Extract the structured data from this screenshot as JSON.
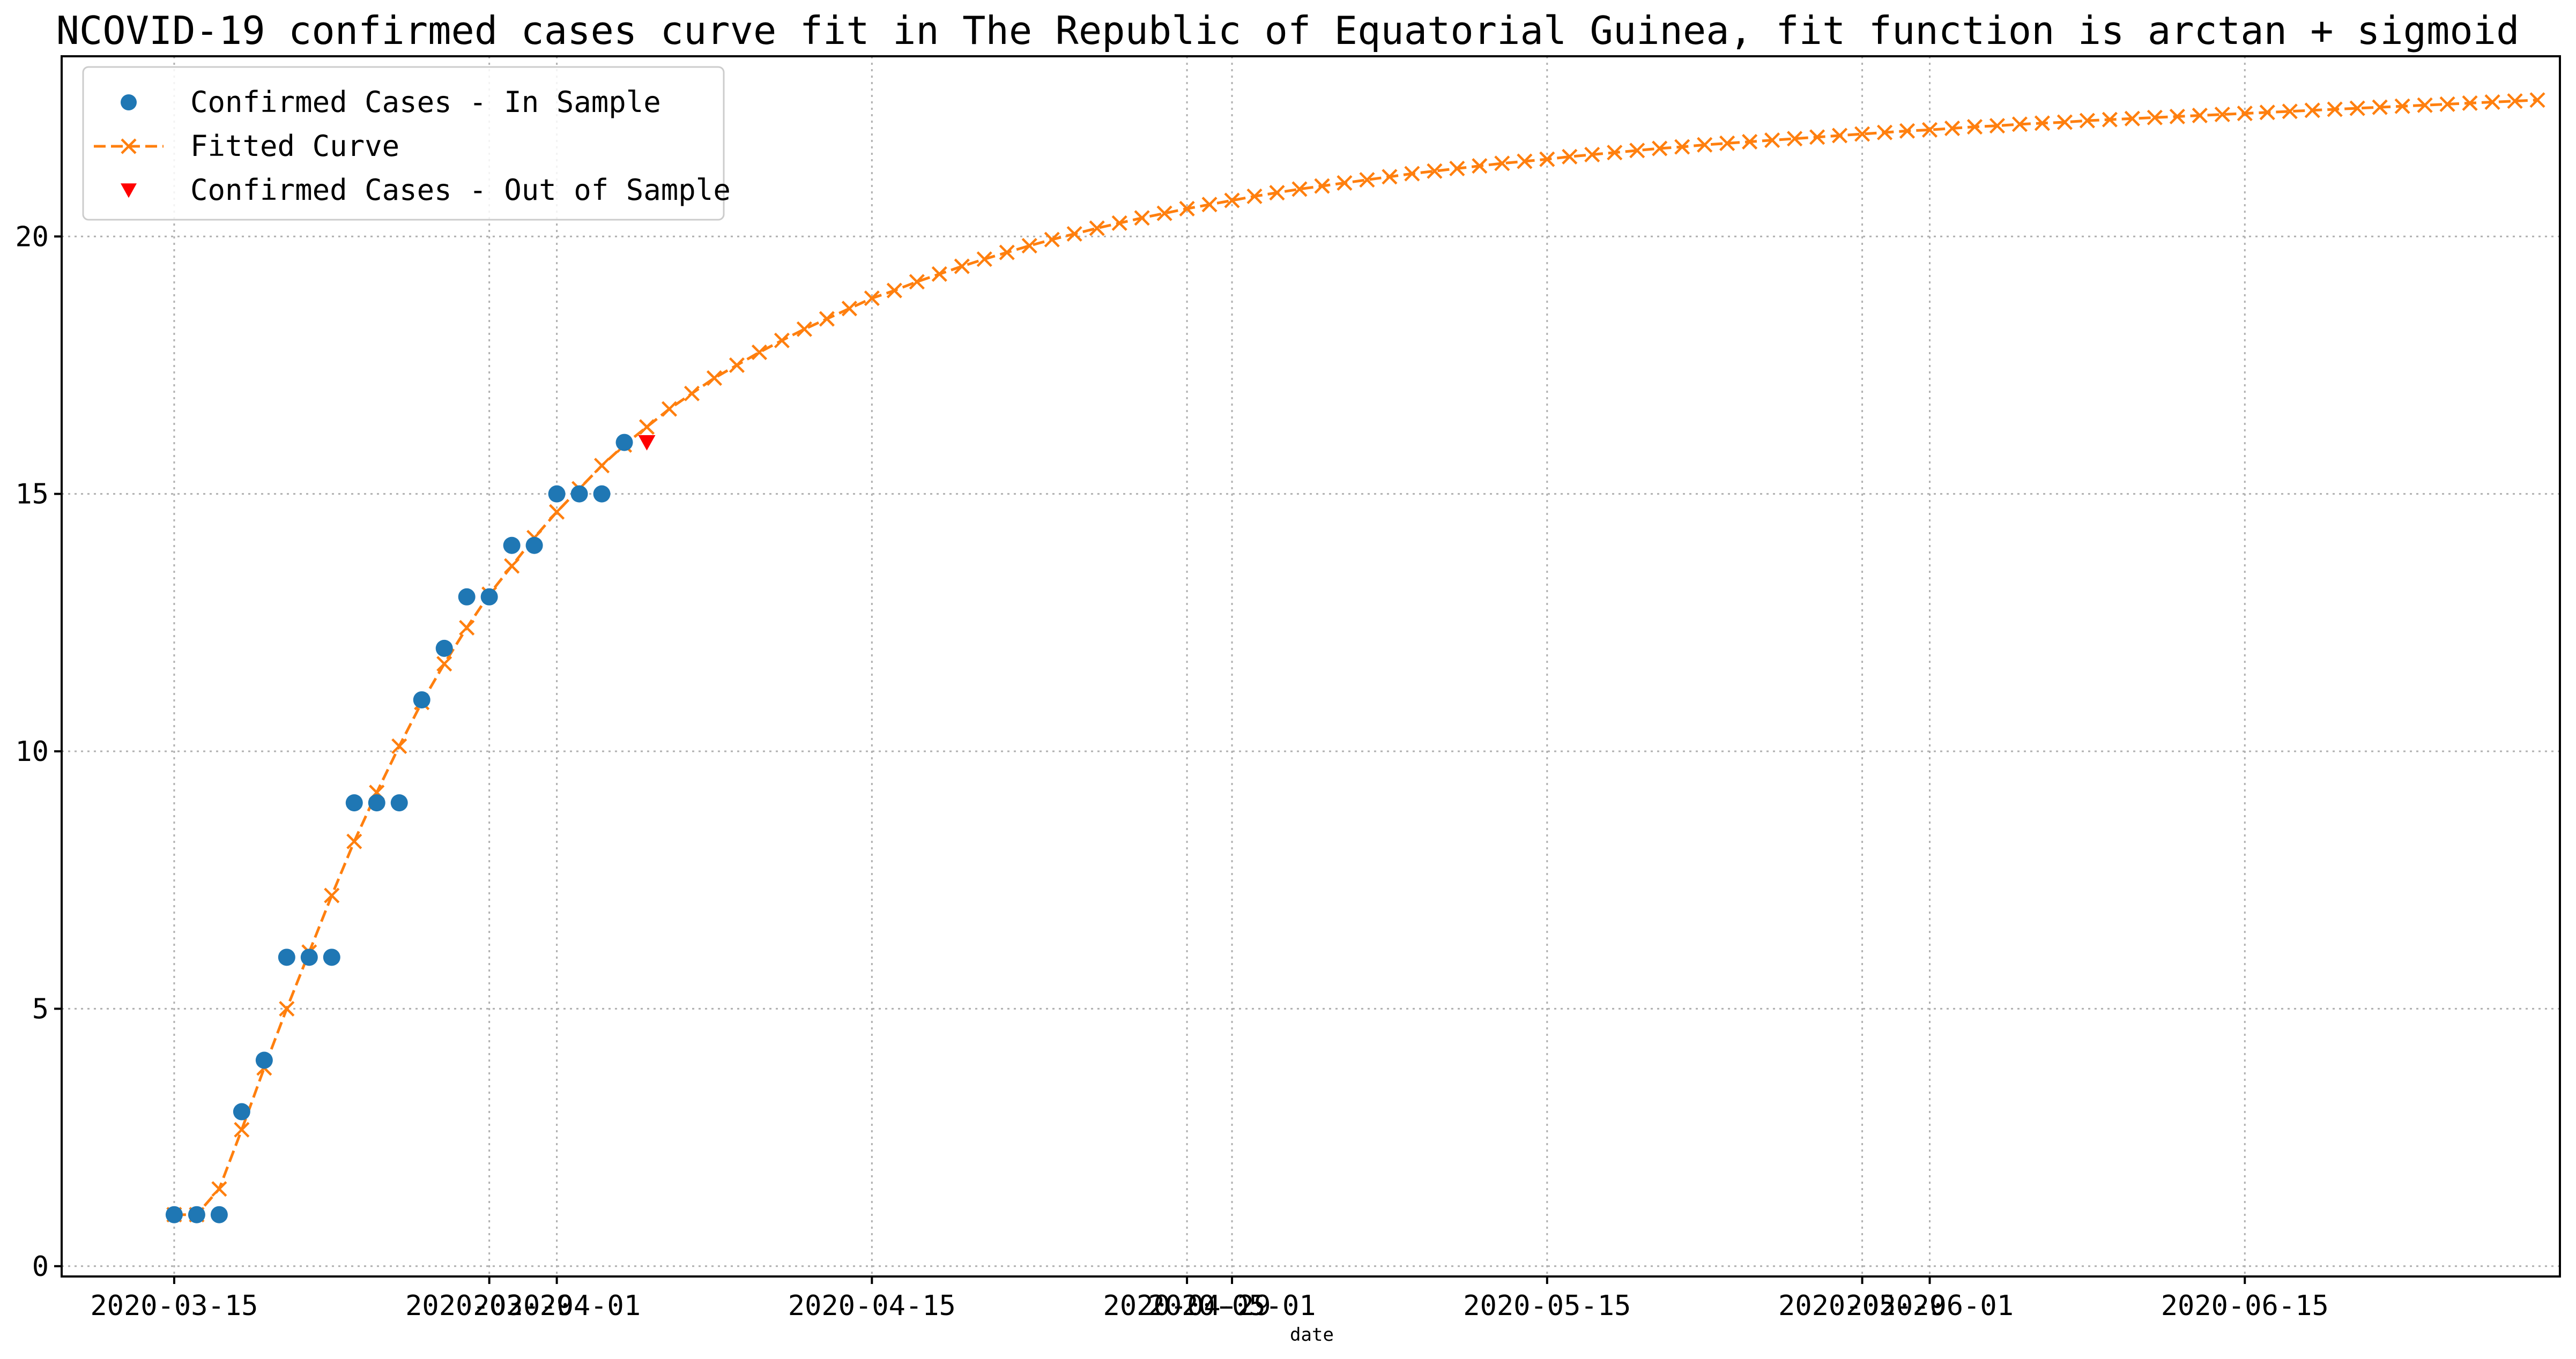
{
  "chart_data": {
    "type": "line",
    "title": "NCOVID-19 confirmed cases curve fit in The Republic of Equatorial Guinea, fit function is arctan + sigmoid",
    "xlabel": "date",
    "ylabel": "",
    "xlim": [
      "2020-03-10",
      "2020-06-29"
    ],
    "ylim": [
      -0.2,
      23.5
    ],
    "grid": true,
    "legend_position": "top-left",
    "x_ticks": [
      "2020-03-15",
      "2020-03-29",
      "2020-04-01",
      "2020-04-15",
      "2020-04-29",
      "2020-05-01",
      "2020-05-15",
      "2020-05-29",
      "2020-06-01",
      "2020-06-15"
    ],
    "y_ticks": [
      0,
      5,
      10,
      15,
      20
    ],
    "series": [
      {
        "name": "Confirmed Cases - In Sample",
        "kind": "scatter",
        "marker": "circle",
        "color": "#1f77b4",
        "start_date": "2020-03-15",
        "values": [
          1,
          1,
          1,
          3,
          4,
          6,
          6,
          6,
          9,
          9,
          9,
          11,
          12,
          13,
          13,
          14,
          14,
          15,
          15,
          15,
          16
        ]
      },
      {
        "name": "Fitted Curve",
        "kind": "line",
        "marker": "x",
        "line_style": "dashed",
        "color": "#ff7f0e",
        "start_date": "2020-03-15",
        "values": [
          1.0,
          1.0,
          1.5,
          2.65,
          3.85,
          5.0,
          6.1,
          7.2,
          8.25,
          9.2,
          10.1,
          10.95,
          11.7,
          12.4,
          13.05,
          13.6,
          14.15,
          14.65,
          15.1,
          15.55,
          15.95,
          16.3,
          16.65,
          16.95,
          17.25,
          17.5,
          17.75,
          17.98,
          18.2,
          18.4,
          18.6,
          18.8,
          18.95,
          19.12,
          19.27,
          19.42,
          19.56,
          19.69,
          19.82,
          19.94,
          20.05,
          20.16,
          20.26,
          20.36,
          20.45,
          20.54,
          20.62,
          20.7,
          20.78,
          20.85,
          20.92,
          20.98,
          21.04,
          21.1,
          21.16,
          21.22,
          21.27,
          21.32,
          21.37,
          21.42,
          21.46,
          21.5,
          21.55,
          21.59,
          21.63,
          21.67,
          21.71,
          21.74,
          21.78,
          21.81,
          21.84,
          21.87,
          21.9,
          21.93,
          21.96,
          21.99,
          22.02,
          22.05,
          22.07,
          22.1,
          22.13,
          22.15,
          22.18,
          22.2,
          22.22,
          22.25,
          22.27,
          22.29,
          22.31,
          22.33,
          22.35,
          22.37,
          22.39,
          22.41,
          22.43,
          22.45,
          22.47,
          22.49,
          22.51,
          22.53,
          22.55,
          22.57,
          22.59,
          22.61,
          22.63,
          22.65
        ]
      },
      {
        "name": "Confirmed Cases - Out of Sample",
        "kind": "scatter",
        "marker": "triangle-down",
        "color": "#ff0000",
        "start_date": "2020-04-05",
        "values": [
          16
        ]
      }
    ]
  }
}
